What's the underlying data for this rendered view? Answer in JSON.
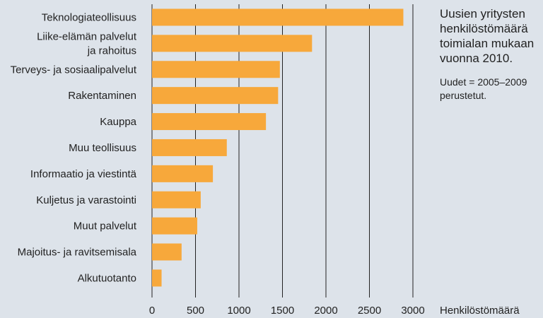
{
  "chart_data": {
    "type": "bar",
    "orientation": "horizontal",
    "categories": [
      "Teknologiateollisuus",
      "Liike-elämän palvelut\nja rahoitus",
      "Terveys- ja sosiaalipalvelut",
      "Rakentaminen",
      "Kauppa",
      "Muu teollisuus",
      "Informaatio ja viestintä",
      "Kuljetus ja varastointi",
      "Muut palvelut",
      "Majoitus- ja ravitsemisala",
      "Alkutuotanto"
    ],
    "values": [
      2890,
      1840,
      1470,
      1450,
      1310,
      860,
      700,
      560,
      520,
      340,
      110
    ],
    "xlim": [
      0,
      3000
    ],
    "xticks": [
      0,
      500,
      1000,
      1500,
      2000,
      2500,
      3000
    ],
    "xlabel": "Henkilöstömäärä",
    "grid": "vertical",
    "bar_color": "#f7a83b"
  },
  "note": {
    "title": "Uusien yritysten\nhenkilöstömäärä\ntoimialan mukaan\nvuonna 2010.",
    "subtitle": "Uudet = 2005–2009\nperustetut."
  },
  "colors": {
    "background": "#dde3ea",
    "bar": "#f7a83b",
    "text": "#222222"
  }
}
